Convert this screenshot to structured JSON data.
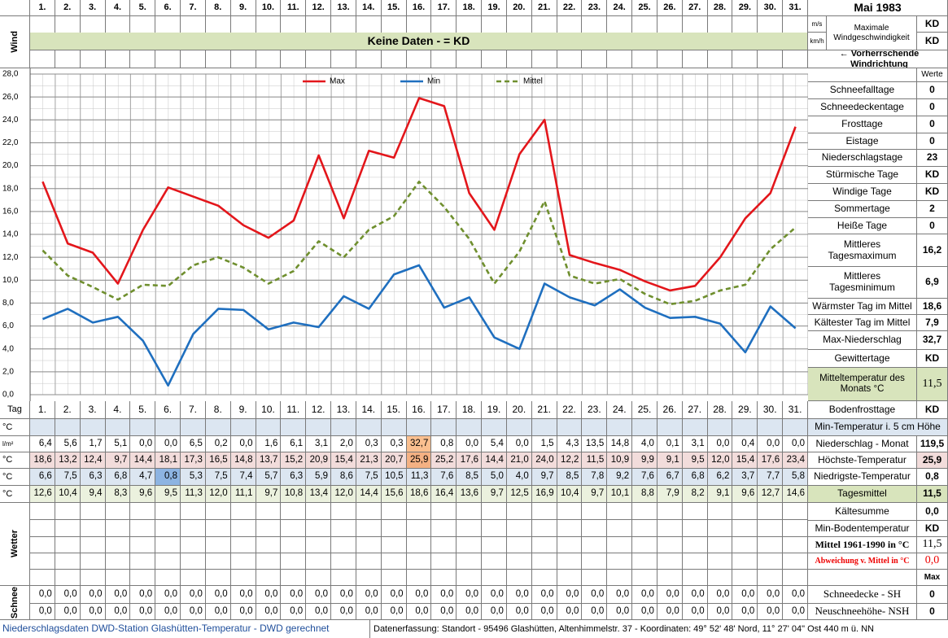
{
  "header": {
    "month": "Mai 1983"
  },
  "wind": {
    "label": "Wind",
    "units": [
      "m/s",
      "km/h"
    ],
    "max_label": "Maximale Windgeschwindigkeit",
    "max_values": [
      "KD",
      "KD"
    ],
    "no_data": "Keine Daten -  = KD",
    "direction": "← Vorherrschende Windrichtung"
  },
  "chart_data": {
    "type": "line",
    "categories": [
      "1.",
      "2.",
      "3.",
      "4.",
      "5.",
      "6.",
      "7.",
      "8.",
      "9.",
      "10.",
      "11.",
      "12.",
      "13.",
      "14.",
      "15.",
      "16.",
      "17.",
      "18.",
      "19.",
      "20.",
      "21.",
      "22.",
      "23.",
      "24.",
      "25.",
      "26.",
      "27.",
      "28.",
      "29.",
      "30.",
      "31."
    ],
    "series": [
      {
        "name": "Max",
        "color": "#e3161b",
        "dash": false,
        "values": [
          18.6,
          13.2,
          12.4,
          9.7,
          14.4,
          18.1,
          17.3,
          16.5,
          14.8,
          13.7,
          15.2,
          20.9,
          15.4,
          21.3,
          20.7,
          25.9,
          25.2,
          17.6,
          14.4,
          21.0,
          24.0,
          12.2,
          11.5,
          10.9,
          9.9,
          9.1,
          9.5,
          12.0,
          15.4,
          17.6,
          23.4
        ],
        "value_labels": [
          "18,6",
          "13,2",
          "12,4",
          "9,7",
          "14,4",
          "18,1",
          "17,3",
          "16,5",
          "14,8",
          "13,7",
          "15,2",
          "20,9",
          "15,4",
          "21,3",
          "20,7",
          "25,9",
          "25,2",
          "17,6",
          "14,4",
          "21,0",
          "24,0",
          "12,2",
          "11,5",
          "10,9",
          "9,9",
          "9,1",
          "9,5",
          "12,0",
          "15,4",
          "17,6",
          "23,4"
        ]
      },
      {
        "name": "Min",
        "color": "#1f6fbf",
        "dash": false,
        "values": [
          6.6,
          7.5,
          6.3,
          6.8,
          4.7,
          0.8,
          5.3,
          7.5,
          7.4,
          5.7,
          6.3,
          5.9,
          8.6,
          7.5,
          10.5,
          11.3,
          7.6,
          8.5,
          5.0,
          4.0,
          9.7,
          8.5,
          7.8,
          9.2,
          7.6,
          6.7,
          6.8,
          6.2,
          3.7,
          7.7,
          5.8
        ],
        "value_labels": [
          "6,6",
          "7,5",
          "6,3",
          "6,8",
          "4,7",
          "0,8",
          "5,3",
          "7,5",
          "7,4",
          "5,7",
          "6,3",
          "5,9",
          "8,6",
          "7,5",
          "10,5",
          "11,3",
          "7,6",
          "8,5",
          "5,0",
          "4,0",
          "9,7",
          "8,5",
          "7,8",
          "9,2",
          "7,6",
          "6,7",
          "6,8",
          "6,2",
          "3,7",
          "7,7",
          "5,8"
        ]
      },
      {
        "name": "Mittel",
        "color": "#6f8f2e",
        "dash": true,
        "values": [
          12.6,
          10.4,
          9.4,
          8.3,
          9.6,
          9.5,
          11.3,
          12.0,
          11.1,
          9.7,
          10.8,
          13.4,
          12.0,
          14.4,
          15.6,
          18.6,
          16.4,
          13.6,
          9.7,
          12.5,
          16.9,
          10.4,
          9.7,
          10.1,
          8.8,
          7.9,
          8.2,
          9.1,
          9.6,
          12.7,
          14.6
        ],
        "value_labels": [
          "12,6",
          "10,4",
          "9,4",
          "8,3",
          "9,6",
          "9,5",
          "11,3",
          "12,0",
          "11,1",
          "9,7",
          "10,8",
          "13,4",
          "12,0",
          "14,4",
          "15,6",
          "18,6",
          "16,4",
          "13,6",
          "9,7",
          "12,5",
          "16,9",
          "10,4",
          "9,7",
          "10,1",
          "8,8",
          "7,9",
          "8,2",
          "9,1",
          "9,6",
          "12,7",
          "14,6"
        ]
      }
    ],
    "ylim": [
      0,
      28
    ],
    "yticks": [
      {
        "value": 0,
        "label": "0,0"
      },
      {
        "value": 2,
        "label": "2,0"
      },
      {
        "value": 4,
        "label": "4,0"
      },
      {
        "value": 6,
        "label": "6,0"
      },
      {
        "value": 8,
        "label": "8,0"
      },
      {
        "value": 10,
        "label": "10,0"
      },
      {
        "value": 12,
        "label": "12,0"
      },
      {
        "value": 14,
        "label": "14,0"
      },
      {
        "value": 16,
        "label": "16,0"
      },
      {
        "value": 18,
        "label": "18,0"
      },
      {
        "value": 20,
        "label": "20,0"
      },
      {
        "value": 22,
        "label": "22,0"
      },
      {
        "value": 24,
        "label": "24,0"
      },
      {
        "value": 26,
        "label": "26,0"
      },
      {
        "value": 28,
        "label": "28,0"
      }
    ],
    "grid": true,
    "legend": "top"
  },
  "stats": {
    "header": "Werte",
    "rows": [
      {
        "label": "Schneefalltage",
        "value": "0"
      },
      {
        "label": "Schneedeckentage",
        "value": "0"
      },
      {
        "label": "Frosttage",
        "value": "0"
      },
      {
        "label": "Eistage",
        "value": "0"
      },
      {
        "label": "Niederschlagstage",
        "value": "23"
      },
      {
        "label": "Stürmische Tage",
        "value": "KD"
      },
      {
        "label": "Windige Tage",
        "value": "KD"
      },
      {
        "label": "Sommertage",
        "value": "2"
      },
      {
        "label": "Heiße Tage",
        "value": "0"
      },
      {
        "label": "Mittleres Tagesmaximum",
        "value": "16,2"
      },
      {
        "label": "Mittleres Tagesminimum",
        "value": "6,9"
      },
      {
        "label": "Wärmster Tag im Mittel",
        "value": "18,6"
      },
      {
        "label": "Kältester Tag im Mittel",
        "value": "7,9"
      },
      {
        "label": "Max-Niederschlag",
        "value": "32,7"
      },
      {
        "label": "Gewittertage",
        "value": "KD"
      },
      {
        "label": "Mitteltemperatur des Monats °C",
        "value": "11,5"
      },
      {
        "label": "Bodenfrosttage",
        "value": "KD"
      }
    ]
  },
  "table": {
    "row_labels": [
      "Tag",
      "°C",
      "l/m²",
      "°C",
      "°C",
      "°C"
    ],
    "precip": [
      "6,4",
      "5,6",
      "1,7",
      "5,1",
      "0,0",
      "0,0",
      "6,5",
      "0,2",
      "0,0",
      "1,6",
      "6,1",
      "3,1",
      "2,0",
      "0,3",
      "0,3",
      "32,7",
      "0,8",
      "0,0",
      "5,4",
      "0,0",
      "1,5",
      "4,3",
      "13,5",
      "14,8",
      "4,0",
      "0,1",
      "3,1",
      "0,0",
      "0,4",
      "0,0",
      "0,0"
    ]
  },
  "summary": [
    {
      "label": "Min-Temperatur i. 5 cm Höhe"
    },
    {
      "label": "Niederschlag - Monat",
      "value": "119,5"
    },
    {
      "label": "Höchste-Temperatur",
      "value": "25,9"
    },
    {
      "label": "Niedrigste-Temperatur",
      "value": "0,8"
    },
    {
      "label": "Tagesmittel",
      "value": "11,5"
    },
    {
      "label": "Kältesumme",
      "value": "0,0"
    },
    {
      "label": "Min-Bodentemperatur",
      "value": "KD"
    },
    {
      "label": "Mittel 1961-1990 in °C",
      "value": "11,5"
    },
    {
      "label": "Abweichung v. Mittel in °C",
      "value": "0,0"
    },
    {
      "value": "Max"
    },
    {
      "label": "Schneedecke -  SH",
      "value": "0"
    },
    {
      "label": "Neuschneehöhe- NSH",
      "value": "0"
    }
  ],
  "weather": {
    "label": "Wetter"
  },
  "snow": {
    "label": "Schnee",
    "rows": [
      [
        "0,0",
        "0,0",
        "0,0",
        "0,0",
        "0,0",
        "0,0",
        "0,0",
        "0,0",
        "0,0",
        "0,0",
        "0,0",
        "0,0",
        "0,0",
        "0,0",
        "0,0",
        "0,0",
        "0,0",
        "0,0",
        "0,0",
        "0,0",
        "0,0",
        "0,0",
        "0,0",
        "0,0",
        "0,0",
        "0,0",
        "0,0",
        "0,0",
        "0,0",
        "0,0",
        "0,0"
      ],
      [
        "0,0",
        "0,0",
        "0,0",
        "0,0",
        "0,0",
        "0,0",
        "0,0",
        "0,0",
        "0,0",
        "0,0",
        "0,0",
        "0,0",
        "0,0",
        "0,0",
        "0,0",
        "0,0",
        "0,0",
        "0,0",
        "0,0",
        "0,0",
        "0,0",
        "0,0",
        "0,0",
        "0,0",
        "0,0",
        "0,0",
        "0,0",
        "0,0",
        "0,0",
        "0,0",
        "0,0"
      ]
    ]
  },
  "footer": {
    "source": "Niederschlagsdaten DWD-Station Glashütten-Temperatur -  DWD gerechnet",
    "location": "Datenerfassung: Standort - 95496 Glashütten, Altenhimmelstr. 37 - Koordinaten: 49° 52' 48' Nord,  11° 27' 04\" Ost  440 m ü. NN"
  }
}
